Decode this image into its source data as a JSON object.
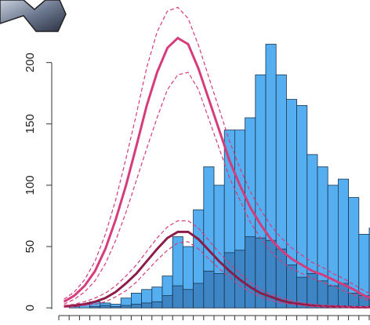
{
  "chart_data": {
    "type": "bar",
    "categories": [
      null,
      null,
      null,
      null,
      null,
      null,
      null,
      null,
      null,
      null,
      null,
      null,
      null,
      null,
      null,
      null,
      null,
      null,
      null,
      null,
      null,
      null,
      null,
      null,
      null,
      null,
      null,
      null,
      null,
      null,
      null
    ],
    "ylim": [
      -5,
      251
    ],
    "yticks": [
      0,
      50,
      100,
      150,
      200
    ],
    "series": [
      {
        "type": "bar",
        "color": "#55aef0",
        "values": [
          0,
          1,
          3,
          5,
          4,
          3,
          8,
          12,
          15,
          17,
          26,
          58,
          50,
          80,
          115,
          100,
          145,
          145,
          155,
          190,
          215,
          190,
          170,
          165,
          125,
          115,
          100,
          105,
          90,
          60,
          65
        ]
      },
      {
        "type": "bar",
        "color": "#3d85c4",
        "values": [
          0,
          0,
          0,
          1,
          2,
          1,
          2,
          3,
          4,
          5,
          10,
          18,
          15,
          20,
          30,
          28,
          45,
          47,
          58,
          57,
          55,
          48,
          35,
          25,
          28,
          22,
          18,
          20,
          12,
          10,
          8
        ]
      },
      {
        "type": "line",
        "color": "#d43c7c",
        "dash": false,
        "values": [
          5,
          10,
          18,
          30,
          48,
          72,
          100,
          132,
          165,
          192,
          212,
          220,
          215,
          195,
          170,
          145,
          120,
          100,
          82,
          68,
          56,
          47,
          40,
          35,
          30,
          27,
          23,
          19,
          15,
          10,
          7
        ]
      },
      {
        "type": "line",
        "color": "#d43c7c",
        "dash": true,
        "values": [
          7,
          13,
          23,
          38,
          60,
          88,
          122,
          158,
          196,
          225,
          242,
          245,
          236,
          214,
          188,
          162,
          136,
          114,
          95,
          80,
          67,
          57,
          49,
          43,
          37,
          33,
          28,
          24,
          19,
          14,
          10
        ]
      },
      {
        "type": "line",
        "color": "#d43c7c",
        "dash": true,
        "values": [
          3,
          7,
          13,
          22,
          36,
          55,
          78,
          104,
          130,
          155,
          178,
          190,
          192,
          178,
          154,
          130,
          106,
          88,
          70,
          57,
          46,
          38,
          32,
          28,
          24,
          21,
          18,
          14,
          11,
          7,
          5
        ]
      },
      {
        "type": "line",
        "color": "#8c1c48",
        "dash": false,
        "values": [
          1,
          2,
          3,
          5,
          8,
          13,
          20,
          28,
          38,
          48,
          57,
          62,
          62,
          56,
          47,
          38,
          30,
          23,
          17,
          12,
          9,
          6,
          4,
          3,
          2,
          1.5,
          1,
          1,
          0.5,
          0.5,
          0.5
        ]
      },
      {
        "type": "line",
        "color": "#d43c7c",
        "dash": true,
        "values": [
          2,
          3,
          5,
          8,
          12,
          18,
          26,
          35,
          46,
          57,
          66,
          71,
          71,
          65,
          55,
          45,
          36,
          28,
          21,
          15,
          11,
          8,
          6,
          4,
          3,
          2,
          2,
          1.5,
          1,
          1,
          1
        ]
      },
      {
        "type": "line",
        "color": "#d43c7c",
        "dash": true,
        "values": [
          0.5,
          1,
          2,
          3,
          5,
          9,
          14,
          21,
          30,
          39,
          47,
          53,
          54,
          48,
          40,
          32,
          25,
          18,
          13,
          9,
          6,
          4,
          3,
          2,
          1,
          1,
          0.5,
          0.5,
          0,
          0,
          0
        ]
      }
    ]
  }
}
